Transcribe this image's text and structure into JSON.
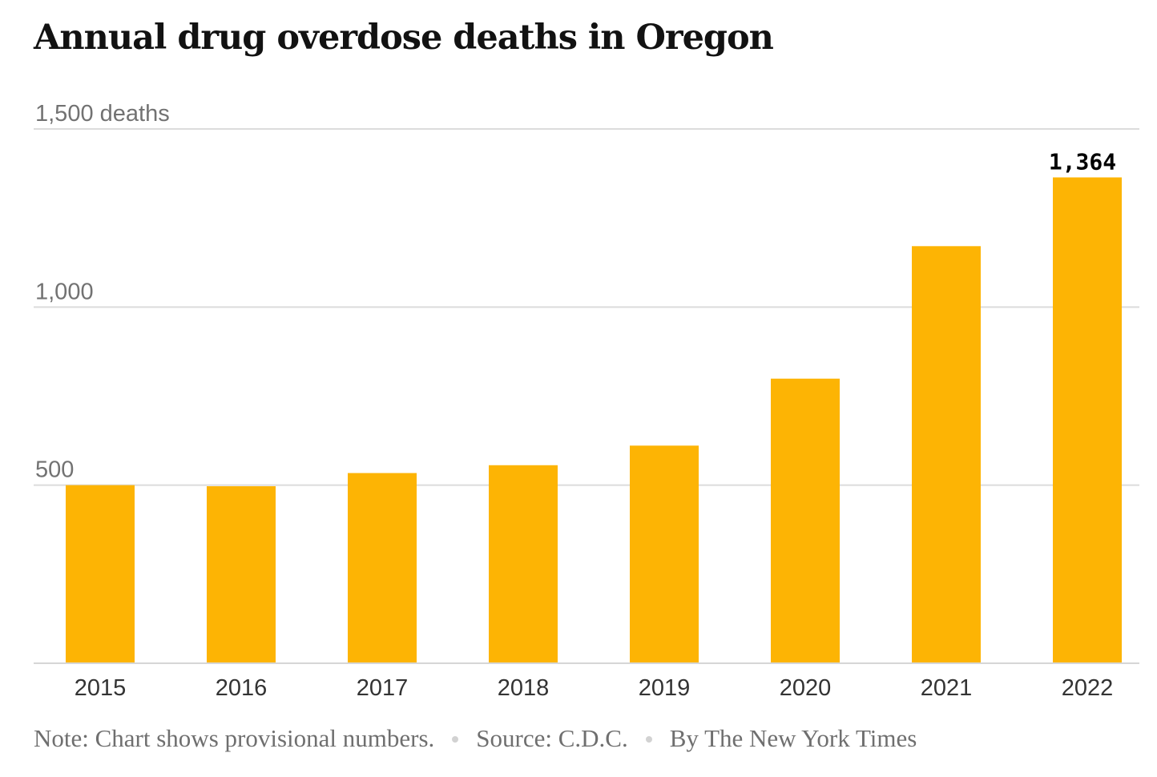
{
  "title": "Annual drug overdose deaths in Oregon",
  "chart_data": {
    "type": "bar",
    "title": "Annual drug overdose deaths in Oregon",
    "categories": [
      "2015",
      "2016",
      "2017",
      "2018",
      "2019",
      "2020",
      "2021",
      "2022"
    ],
    "values": [
      500,
      497,
      534,
      556,
      611,
      799,
      1171,
      1364
    ],
    "ylim": [
      0,
      1500
    ],
    "yticks": [
      {
        "value": 1500,
        "label": "1,500 deaths"
      },
      {
        "value": 1000,
        "label": "1,000"
      },
      {
        "value": 500,
        "label": "500"
      }
    ],
    "data_labels": [
      {
        "category": "2022",
        "label": "1,364"
      }
    ],
    "bar_color": "#fdb404",
    "grid": true,
    "xlabel": "",
    "ylabel": ""
  },
  "footer": {
    "note": "Note: Chart shows provisional numbers.",
    "source": "Source: C.D.C.",
    "credit": "By The New York Times"
  }
}
